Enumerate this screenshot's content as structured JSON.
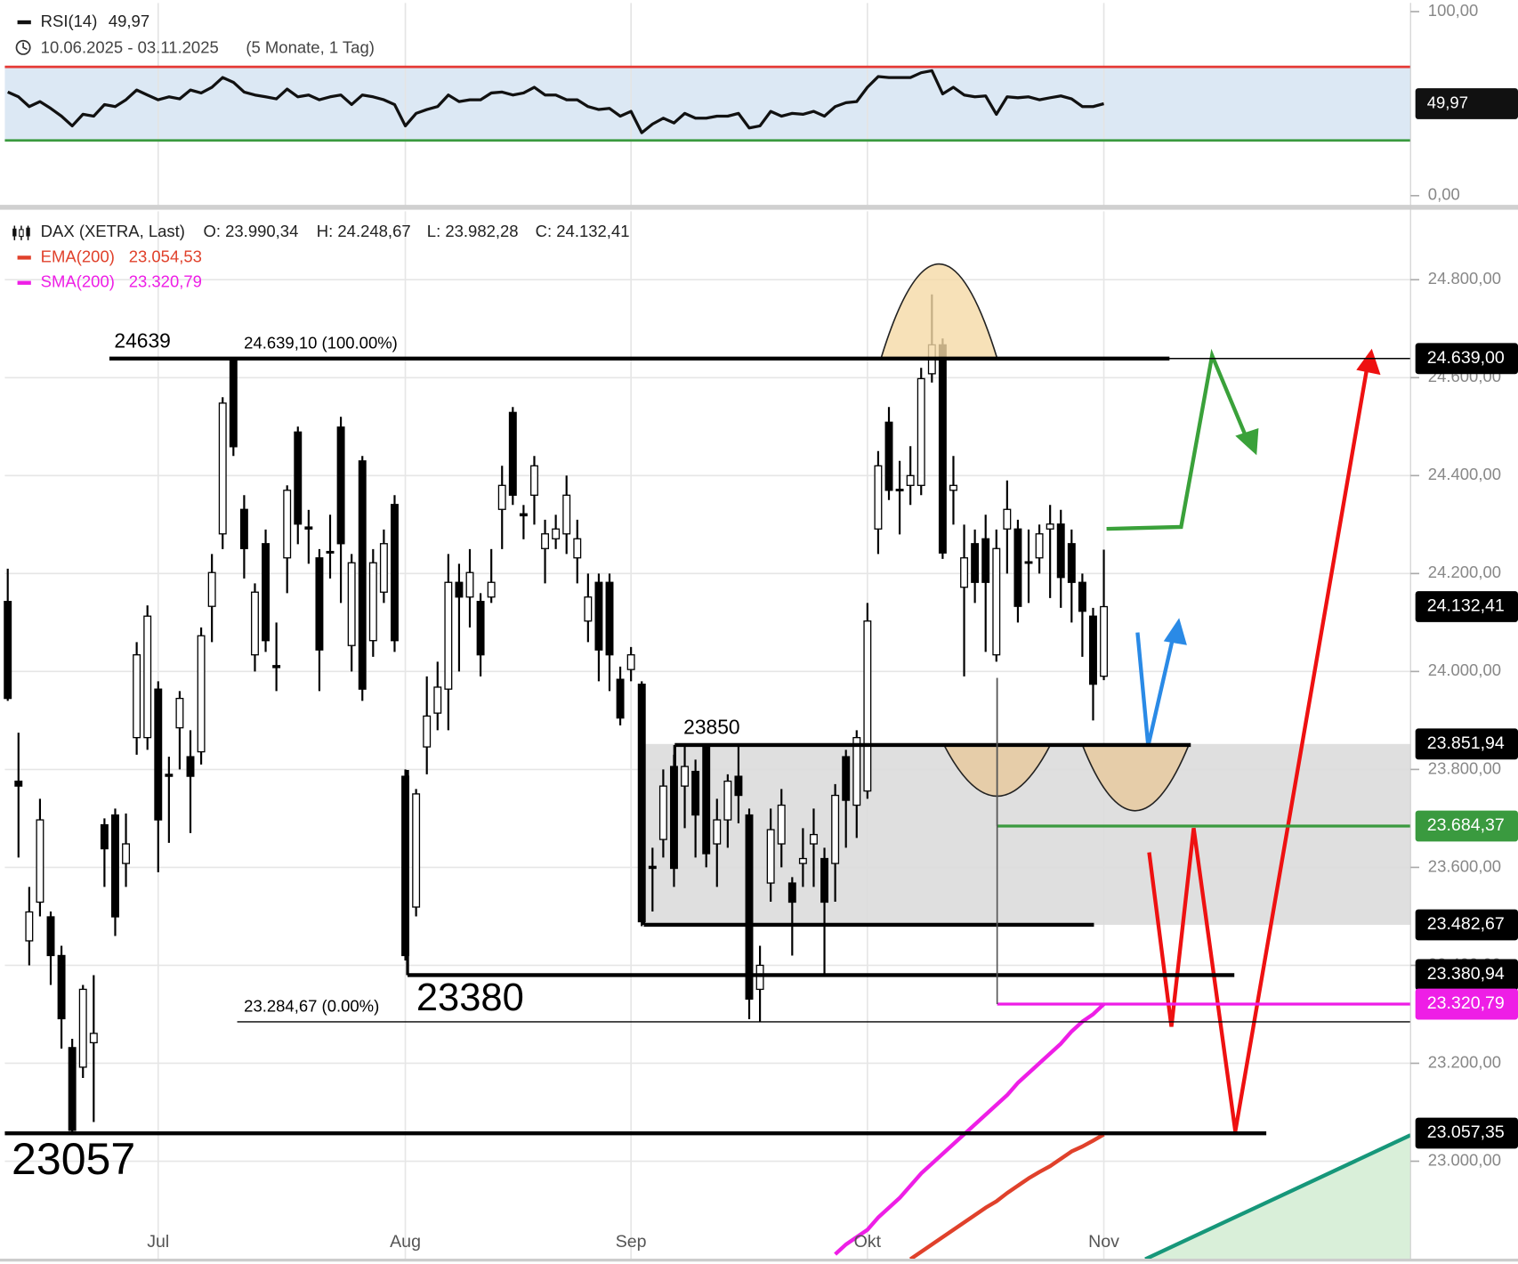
{
  "chart_data": [
    {
      "type": "line",
      "subtitle": "10.06.2025 - 03.11.2025",
      "subtitle_note": "(5 Monate, 1 Tag)",
      "series": [
        {
          "name": "RSI(14)",
          "color": "#111111",
          "last_label": "49,97",
          "values": [
            56.3,
            53.7,
            48.4,
            51.1,
            47.4,
            43.2,
            37.9,
            44.2,
            43.2,
            49.5,
            48.4,
            52.1,
            57.4,
            54.7,
            52.1,
            53.7,
            52.6,
            57.4,
            55.8,
            58.9,
            64.2,
            61.6,
            56.3,
            54.7,
            53.7,
            52.6,
            57.9,
            53.7,
            54.7,
            52.1,
            53.7,
            54.7,
            49.5,
            54.7,
            53.7,
            52.1,
            49.5,
            37.9,
            44.7,
            46.8,
            48.4,
            54.7,
            51.1,
            52.1,
            52.1,
            55.8,
            56.3,
            54.7,
            55.8,
            58.9,
            54.7,
            54.7,
            52.1,
            52.1,
            48.4,
            46.8,
            47.4,
            43.2,
            45.8,
            34.2,
            38.9,
            42.1,
            39.5,
            44.7,
            42.1,
            42.1,
            43.2,
            43.2,
            44.7,
            36.8,
            37.9,
            45.8,
            43.2,
            44.7,
            44.2,
            45.8,
            43.2,
            48.4,
            50.5,
            51.1,
            58.9,
            64.7,
            64.2,
            64.2,
            64.2,
            66.8,
            67.9,
            55.3,
            58.9,
            54.7,
            53.7,
            54.2,
            44.2,
            53.7,
            53.2,
            53.7,
            52.1,
            53.2,
            54.2,
            52.6,
            48.4,
            48.4,
            49.97
          ]
        }
      ],
      "ylim": [
        0,
        100
      ],
      "yticks": [
        {
          "value": 0,
          "label": "0,00"
        },
        {
          "value": 100,
          "label": "100,00"
        }
      ],
      "bands": [
        {
          "value": 70,
          "color": "#e53935"
        },
        {
          "value": 30,
          "color": "#3a9a3f"
        }
      ],
      "band_fill": "#dce8f4",
      "grid": true
    },
    {
      "type": "candlestick",
      "title": "DAX (XETRA, Last)",
      "ohlc_labels": [
        "O: 23.990,34",
        "H: 24.248,67",
        "L: 23.982,28",
        "C: 24.132,41"
      ],
      "categories": [
        null,
        null,
        null,
        null,
        null,
        null,
        null,
        null,
        null,
        null,
        null,
        null,
        null,
        null,
        "Jul",
        null,
        null,
        null,
        null,
        null,
        null,
        null,
        null,
        null,
        null,
        null,
        null,
        null,
        null,
        null,
        null,
        null,
        null,
        null,
        null,
        null,
        null,
        "Aug",
        null,
        null,
        null,
        null,
        null,
        null,
        null,
        null,
        null,
        null,
        null,
        null,
        null,
        null,
        null,
        null,
        null,
        null,
        null,
        null,
        "Sep",
        null,
        null,
        null,
        null,
        null,
        null,
        null,
        null,
        null,
        null,
        null,
        null,
        null,
        null,
        null,
        null,
        null,
        null,
        null,
        null,
        null,
        "Okt",
        null,
        null,
        null,
        null,
        null,
        null,
        null,
        null,
        null,
        null,
        null,
        null,
        null,
        null,
        null,
        null,
        null,
        null,
        null,
        null,
        null,
        "Nov"
      ],
      "open": [
        24143,
        23776,
        23450,
        23529,
        23499,
        23420,
        23232,
        23192,
        23242,
        23687,
        23707,
        23608,
        23865,
        23865,
        23964,
        23790,
        23885,
        23826,
        23836,
        24133,
        24281,
        24638,
        24331,
        24034,
        24261,
        24012,
        24232,
        24489,
        24295,
        24232,
        24245,
        24499,
        24053,
        24430,
        24063,
        24162,
        24341,
        23786,
        23519,
        23846,
        23915,
        23964,
        24182,
        24152,
        24143,
        24152,
        24331,
        24529,
        24322,
        24360,
        24251,
        24271,
        24281,
        24232,
        24103,
        24182,
        24182,
        23984,
        24004,
        23974,
        23602,
        23657,
        23806,
        23766,
        23796,
        23846,
        23648,
        23697,
        23786,
        23707,
        23351,
        23568,
        23648,
        23568,
        23608,
        23648,
        23618,
        23608,
        23826,
        23727,
        23756,
        24291,
        24509,
        24372,
        24380,
        24380,
        24608,
        24667,
        24370,
        24172,
        24261,
        24271,
        24034,
        24291,
        24291,
        24224,
        24232,
        24291,
        24301,
        24261,
        24182,
        24113,
        23990.34
      ],
      "high": [
        24210,
        23875,
        23560,
        23740,
        23510,
        23440,
        23250,
        23360,
        23380,
        23700,
        23720,
        23710,
        24060,
        24135,
        23980,
        23826,
        23960,
        23880,
        24090,
        24240,
        24560,
        24639,
        24360,
        24180,
        24290,
        24100,
        24380,
        24500,
        24330,
        24250,
        24320,
        24520,
        24240,
        24440,
        24250,
        24290,
        24360,
        23800,
        23760,
        23990,
        24020,
        24240,
        24220,
        24250,
        24160,
        24250,
        24420,
        24540,
        24340,
        24440,
        24310,
        24320,
        24400,
        24310,
        24200,
        24200,
        24200,
        24010,
        24050,
        23980,
        23640,
        23800,
        23830,
        23850,
        23820,
        23850,
        23740,
        23790,
        23850,
        23720,
        23440,
        23720,
        23760,
        23580,
        23680,
        23720,
        23640,
        23770,
        23840,
        23880,
        24140,
        24450,
        24540,
        24430,
        24460,
        24620,
        24770,
        24680,
        24440,
        24300,
        24290,
        24320,
        24290,
        24390,
        24310,
        24290,
        24300,
        24340,
        24330,
        24290,
        24200,
        24130,
        24248.67
      ],
      "low": [
        23940,
        23620,
        23400,
        23500,
        23360,
        23230,
        23057,
        23170,
        23080,
        23560,
        23460,
        23560,
        23830,
        23840,
        23590,
        23650,
        23800,
        23670,
        23810,
        24060,
        24250,
        24440,
        24190,
        24000,
        24040,
        23960,
        24160,
        24260,
        24220,
        23960,
        24190,
        24140,
        24000,
        23940,
        24030,
        24140,
        24040,
        23410,
        23500,
        23790,
        23880,
        23880,
        24000,
        24090,
        23990,
        24140,
        24250,
        24340,
        24270,
        24300,
        24180,
        24250,
        24240,
        24180,
        24060,
        23980,
        23960,
        23890,
        23980,
        23480,
        23510,
        23620,
        23560,
        23680,
        23620,
        23600,
        23560,
        23640,
        23690,
        23290,
        23285,
        23530,
        23600,
        23420,
        23560,
        23560,
        23380,
        23530,
        23640,
        23660,
        23740,
        24240,
        24350,
        24280,
        24340,
        24360,
        24590,
        24230,
        24300,
        23990,
        24140,
        24040,
        24020,
        24200,
        24100,
        24140,
        24200,
        24150,
        24130,
        24100,
        24030,
        23900,
        23982.28
      ],
      "close": [
        23945,
        23766,
        23509,
        23697,
        23420,
        23291,
        23063,
        23351,
        23261,
        23638,
        23499,
        23648,
        24034,
        24113,
        23697,
        23786,
        23945,
        23786,
        24073,
        24202,
        24548,
        24459,
        24251,
        24162,
        24063,
        24008,
        24370,
        24301,
        24291,
        24044,
        24242,
        24261,
        24222,
        23964,
        24222,
        24261,
        24063,
        23420,
        23750,
        23909,
        23968,
        24182,
        24152,
        24202,
        24034,
        24182,
        24380,
        24360,
        24318,
        24420,
        24281,
        24291,
        24360,
        24271,
        24152,
        24044,
        24034,
        23905,
        24034,
        23489,
        23598,
        23766,
        23598,
        23806,
        23707,
        23628,
        23697,
        23776,
        23747,
        23331,
        23400,
        23677,
        23727,
        23529,
        23618,
        23667,
        23529,
        23747,
        23737,
        23865,
        24103,
        24420,
        24370,
        24370,
        24400,
        24598,
        24667,
        24242,
        24380,
        24232,
        24182,
        24182,
        24251,
        24331,
        24133,
        24222,
        24281,
        24301,
        24192,
        24182,
        24123,
        23974,
        24132.41
      ],
      "up_color": "#ffffff",
      "down_color": "#000000",
      "series": [
        {
          "name": "EMA(200)",
          "color": "#e0412b",
          "last_label": "23.054,53",
          "values": [
            null,
            null,
            null,
            null,
            null,
            null,
            null,
            null,
            null,
            null,
            null,
            null,
            null,
            null,
            null,
            null,
            null,
            null,
            null,
            null,
            null,
            null,
            null,
            null,
            null,
            null,
            null,
            null,
            null,
            null,
            null,
            null,
            null,
            null,
            null,
            null,
            null,
            null,
            null,
            null,
            null,
            null,
            null,
            null,
            null,
            null,
            null,
            null,
            null,
            null,
            null,
            null,
            null,
            null,
            null,
            null,
            null,
            null,
            null,
            null,
            null,
            null,
            null,
            null,
            null,
            null,
            null,
            null,
            null,
            null,
            null,
            null,
            null,
            null,
            null,
            null,
            null,
            null,
            null,
            null,
            null,
            null,
            null,
            null,
            22800,
            22815,
            22830,
            22845,
            22860,
            22875,
            22890,
            22905,
            22918,
            22935,
            22950,
            22965,
            22978,
            22990,
            23005,
            23020,
            23030,
            23042,
            23054.53
          ]
        },
        {
          "name": "SMA(200)",
          "color": "#ee1ee6",
          "last_label": "23.320,79",
          "values": [
            null,
            null,
            null,
            null,
            null,
            null,
            null,
            null,
            null,
            null,
            null,
            null,
            null,
            null,
            null,
            null,
            null,
            null,
            null,
            null,
            null,
            null,
            null,
            null,
            null,
            null,
            null,
            null,
            null,
            null,
            null,
            null,
            null,
            null,
            null,
            null,
            null,
            null,
            null,
            null,
            null,
            null,
            null,
            null,
            null,
            null,
            null,
            null,
            null,
            null,
            null,
            null,
            null,
            null,
            null,
            null,
            null,
            null,
            null,
            null,
            null,
            null,
            null,
            null,
            null,
            null,
            null,
            null,
            null,
            null,
            null,
            null,
            null,
            null,
            null,
            null,
            null,
            22810,
            22830,
            22845,
            22860,
            22885,
            22905,
            22925,
            22950,
            22975,
            22995,
            23015,
            23035,
            23055,
            23075,
            23095,
            23115,
            23135,
            23160,
            23180,
            23200,
            23220,
            23240,
            23265,
            23285,
            23300,
            23320.79
          ]
        }
      ],
      "ylim": [
        22800,
        24940
      ],
      "yticks": [
        {
          "value": 23000,
          "label": "23.000,00"
        },
        {
          "value": 23200,
          "label": "23.200,00"
        },
        {
          "value": 23400,
          "label": "23.400,00"
        },
        {
          "value": 23600,
          "label": "23.600,00"
        },
        {
          "value": 23800,
          "label": "23.800,00"
        },
        {
          "value": 24000,
          "label": "24.000,00"
        },
        {
          "value": 24200,
          "label": "24.200,00"
        },
        {
          "value": 24400,
          "label": "24.400,00"
        },
        {
          "value": 24600,
          "label": "24.600,00"
        },
        {
          "value": 24800,
          "label": "24.800,00"
        }
      ],
      "zone": {
        "from": 23482.67,
        "to": 23851.94,
        "color": "#dcdcdc"
      },
      "levels": [
        {
          "value": 24639,
          "label": "24639"
        },
        {
          "value": 24639.1,
          "label": "24.639,10 (100.00%)"
        },
        {
          "value": 23850,
          "label": "23850"
        },
        {
          "value": 23380,
          "label": "23380"
        },
        {
          "value": 23284.67,
          "label": "23.284,67 (0.00%)"
        },
        {
          "value": 23057,
          "label": "23057"
        }
      ],
      "price_tags": [
        {
          "value": 24639,
          "label": "24.639,00",
          "color": "#000000"
        },
        {
          "value": 24132.41,
          "label": "24.132,41",
          "color": "#000000"
        },
        {
          "value": 23851.94,
          "label": "23.851,94",
          "color": "#000000"
        },
        {
          "value": 23684.37,
          "label": "23.684,37",
          "color": "#3a9a3f"
        },
        {
          "value": 23482.67,
          "label": "23.482,67",
          "color": "#000000"
        },
        {
          "value": 23380.94,
          "label": "23.380,94",
          "color": "#000000"
        },
        {
          "value": 23320.79,
          "label": "23.320,79",
          "color": "#ee1ee6"
        },
        {
          "value": 23057.35,
          "label": "23.057,35",
          "color": "#000000"
        }
      ],
      "grid": true
    }
  ]
}
